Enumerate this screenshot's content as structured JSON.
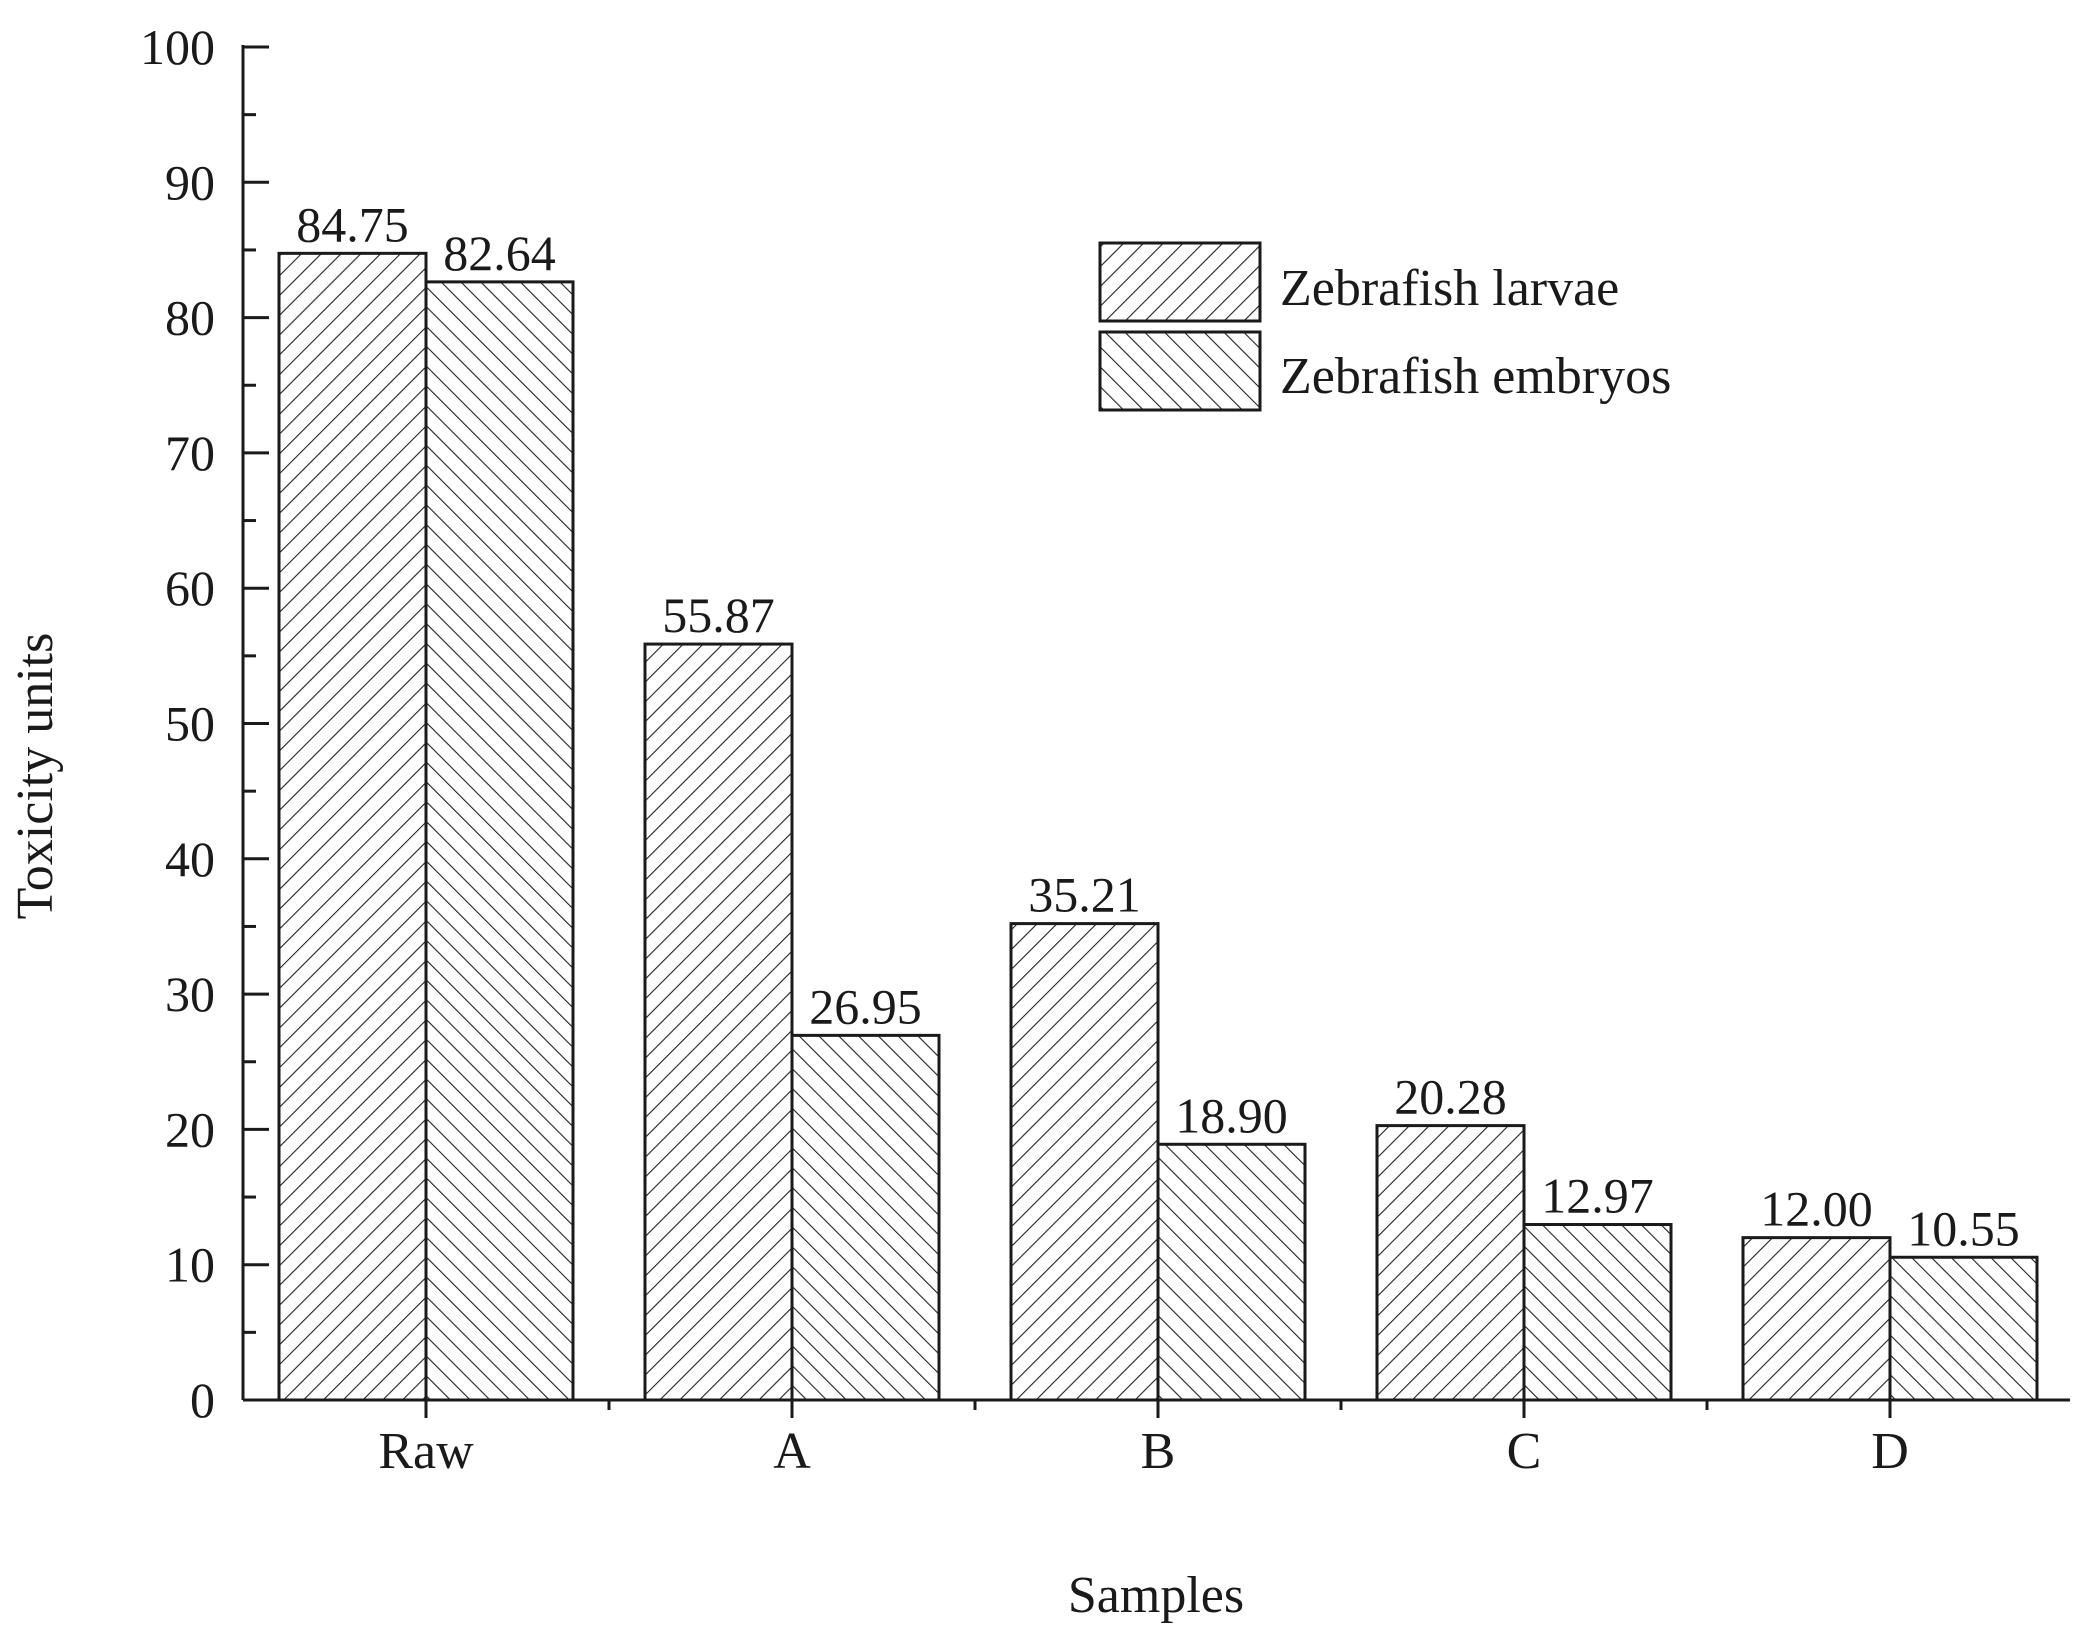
{
  "chart_data": {
    "type": "bar",
    "title": "",
    "xlabel": "Samples",
    "ylabel": "Toxicity units",
    "ylim": [
      0,
      100
    ],
    "yticks": [
      0,
      10,
      20,
      30,
      40,
      50,
      60,
      70,
      80,
      90,
      100
    ],
    "categories": [
      "Raw",
      "A",
      "B",
      "C",
      "D"
    ],
    "series": [
      {
        "name": "Zebrafish larvae",
        "values": [
          84.75,
          55.87,
          35.21,
          20.28,
          12.0
        ],
        "labels": [
          "84.75",
          "55.87",
          "35.21",
          "20.28",
          "12.00"
        ],
        "hatch": "forward-diagonal"
      },
      {
        "name": "Zebrafish embryos",
        "values": [
          82.64,
          26.95,
          18.9,
          12.97,
          10.55
        ],
        "labels": [
          "82.64",
          "26.95",
          "18.90",
          "12.97",
          "10.55"
        ],
        "hatch": "backward-diagonal"
      }
    ],
    "grid": false,
    "legend_position": "top-right",
    "colors": {
      "bar_fill": "#ffffff",
      "stroke": "#1a1a1a"
    }
  }
}
